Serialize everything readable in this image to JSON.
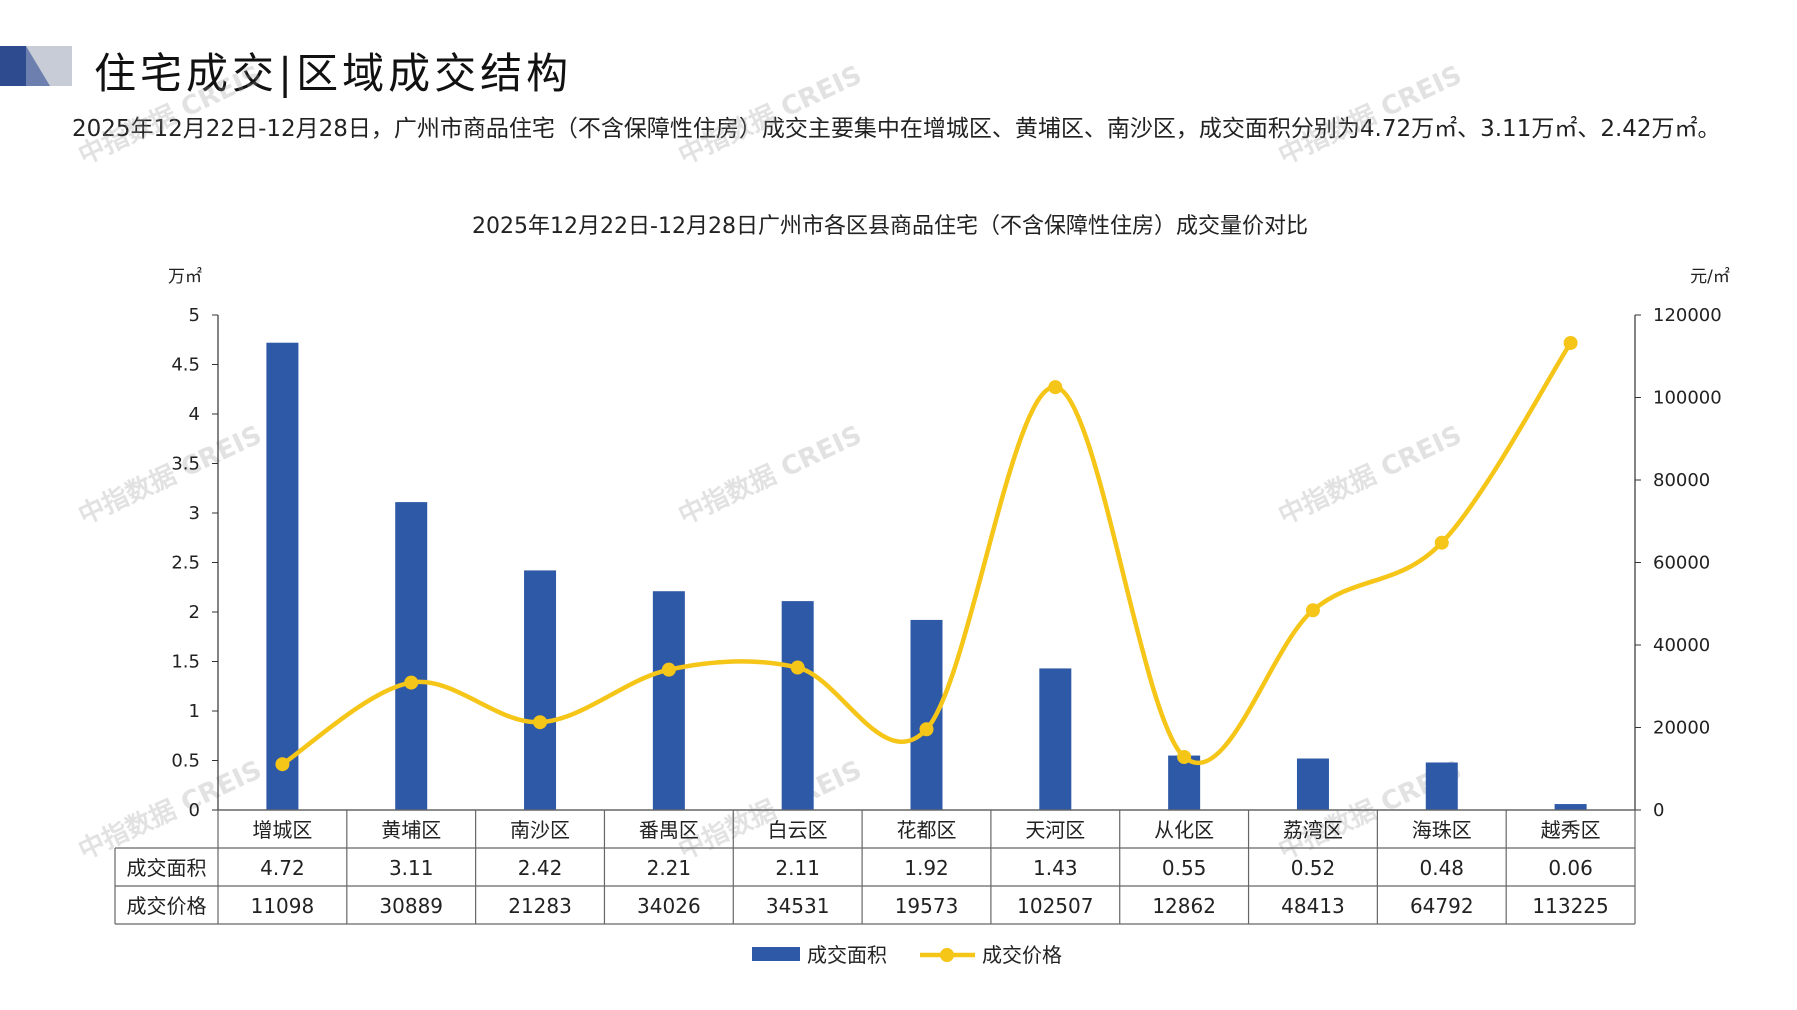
{
  "page": {
    "title": "住宅成交|区域成交结构",
    "summary": "2025年12月22日-12月28日，广州市商品住宅（不含保障性住房）成交主要集中在增城区、黄埔区、南沙区，成交面积分别为4.72万㎡、3.11万㎡、2.42万㎡。",
    "watermark": "中指数据 CREIS"
  },
  "colors": {
    "bar": "#2E59A7",
    "line": "#F5C518",
    "logo_dark": "#2E4B8F",
    "logo_light": "#C8CCD6"
  },
  "chart_data": {
    "type": "bar",
    "title": "2025年12月22日-12月28日广州市各区县商品住宅（不含保障性住房）成交量价对比",
    "ylabel": "万㎡",
    "y2label": "元/㎡",
    "ylim": [
      0,
      5
    ],
    "y2lim": [
      0,
      120000
    ],
    "yticks": [
      "0",
      "0.5",
      "1",
      "1.5",
      "2",
      "2.5",
      "3",
      "3.5",
      "4",
      "4.5",
      "5"
    ],
    "y2ticks": [
      "0",
      "20000",
      "40000",
      "60000",
      "80000",
      "100000",
      "120000"
    ],
    "categories": [
      "增城区",
      "黄埔区",
      "南沙区",
      "番禺区",
      "白云区",
      "花都区",
      "天河区",
      "从化区",
      "荔湾区",
      "海珠区",
      "越秀区"
    ],
    "series": [
      {
        "name": "成交面积",
        "type": "bar",
        "axis": "left",
        "values": [
          4.72,
          3.11,
          2.42,
          2.21,
          2.11,
          1.92,
          1.43,
          0.55,
          0.52,
          0.48,
          0.06
        ],
        "labels": [
          "4.72",
          "3.11",
          "2.42",
          "2.21",
          "2.11",
          "1.92",
          "1.43",
          "0.55",
          "0.52",
          "0.48",
          "0.06"
        ]
      },
      {
        "name": "成交价格",
        "type": "line",
        "axis": "right",
        "smooth": true,
        "values": [
          11098,
          30889,
          21283,
          34026,
          34531,
          19573,
          102507,
          12862,
          48413,
          64792,
          113225
        ],
        "labels": [
          "11098",
          "30889",
          "21283",
          "34026",
          "34531",
          "19573",
          "102507",
          "12862",
          "48413",
          "64792",
          "113225"
        ]
      }
    ],
    "data_table": true,
    "legend": "bottom",
    "grid": false
  }
}
